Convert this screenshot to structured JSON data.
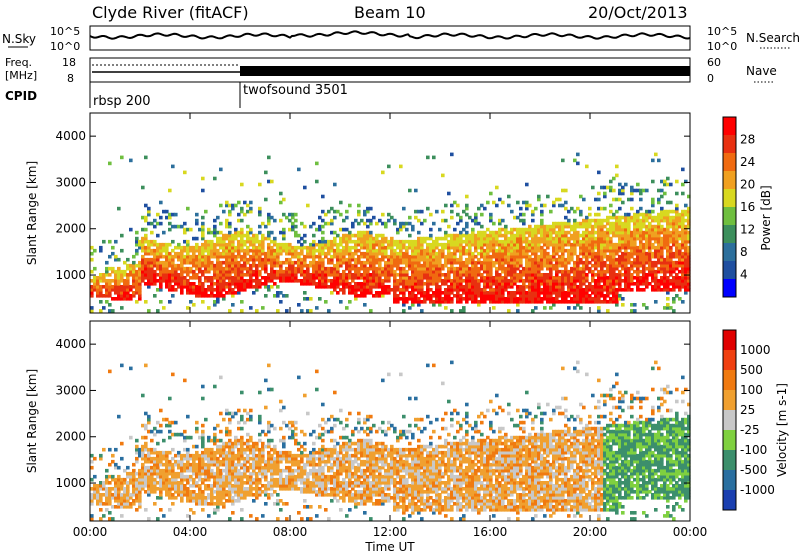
{
  "header": {
    "site": "Clyde River (fitACF)",
    "beam": "Beam 10",
    "date": "20/Oct/2013"
  },
  "sky_panel": {
    "left_label": "N.Sky",
    "right_label": "N.Search",
    "left_ticks": [
      "10^5",
      "10^0"
    ],
    "right_ticks": [
      "10^5",
      "10^0"
    ]
  },
  "freq_panel": {
    "left_label_1": "Freq.",
    "left_label_2": "[MHz]",
    "right_label": "Nave",
    "left_ticks": [
      "18",
      "8"
    ],
    "right_ticks": [
      "60",
      "0"
    ]
  },
  "cpid_panel": {
    "label": "CPID",
    "programs": [
      {
        "name": "rbsp 200",
        "start_hour": 0
      },
      {
        "name": "twofsound 3501",
        "start_hour": 6
      }
    ]
  },
  "chart_data": [
    {
      "type": "heatmap",
      "title": "Power",
      "ylabel": "Slant Range [km]",
      "xlabel": "Time UT",
      "xlim": [
        0,
        24
      ],
      "ylim": [
        180,
        4500
      ],
      "yticks": [
        "1000",
        "2000",
        "3000",
        "4000"
      ],
      "xticks": [
        "00:00",
        "04:00",
        "08:00",
        "12:00",
        "16:00",
        "20:00",
        "00:00"
      ],
      "colorbar": {
        "label": "Power [dB]",
        "ticks": [
          "4",
          "8",
          "12",
          "16",
          "20",
          "24",
          "28"
        ],
        "colors": [
          "#0000ff",
          "#1f4fa0",
          "#2c6f9c",
          "#3c8f5c",
          "#6fbf3f",
          "#d8d820",
          "#f0a020",
          "#f06a10",
          "#e83010",
          "#ff0000"
        ]
      }
    },
    {
      "type": "heatmap",
      "title": "Velocity",
      "ylabel": "Slant Range [km]",
      "xlabel": "Time UT",
      "xlim": [
        0,
        24
      ],
      "ylim": [
        180,
        4500
      ],
      "yticks": [
        "1000",
        "2000",
        "3000",
        "4000"
      ],
      "xticks": [
        "00:00",
        "04:00",
        "08:00",
        "12:00",
        "16:00",
        "20:00",
        "00:00"
      ],
      "colorbar": {
        "label": "Velocity [m s-1]",
        "ticks": [
          "1000",
          "500",
          "100",
          "25",
          "-25",
          "-100",
          "-500",
          "-1000"
        ],
        "colors": [
          "#1a3fb0",
          "#2a6fa0",
          "#3c8f6c",
          "#7fd03f",
          "#c8c8c8",
          "#f0a030",
          "#f07a10",
          "#f04010",
          "#e00000"
        ]
      }
    }
  ],
  "xlabel": "Time UT"
}
